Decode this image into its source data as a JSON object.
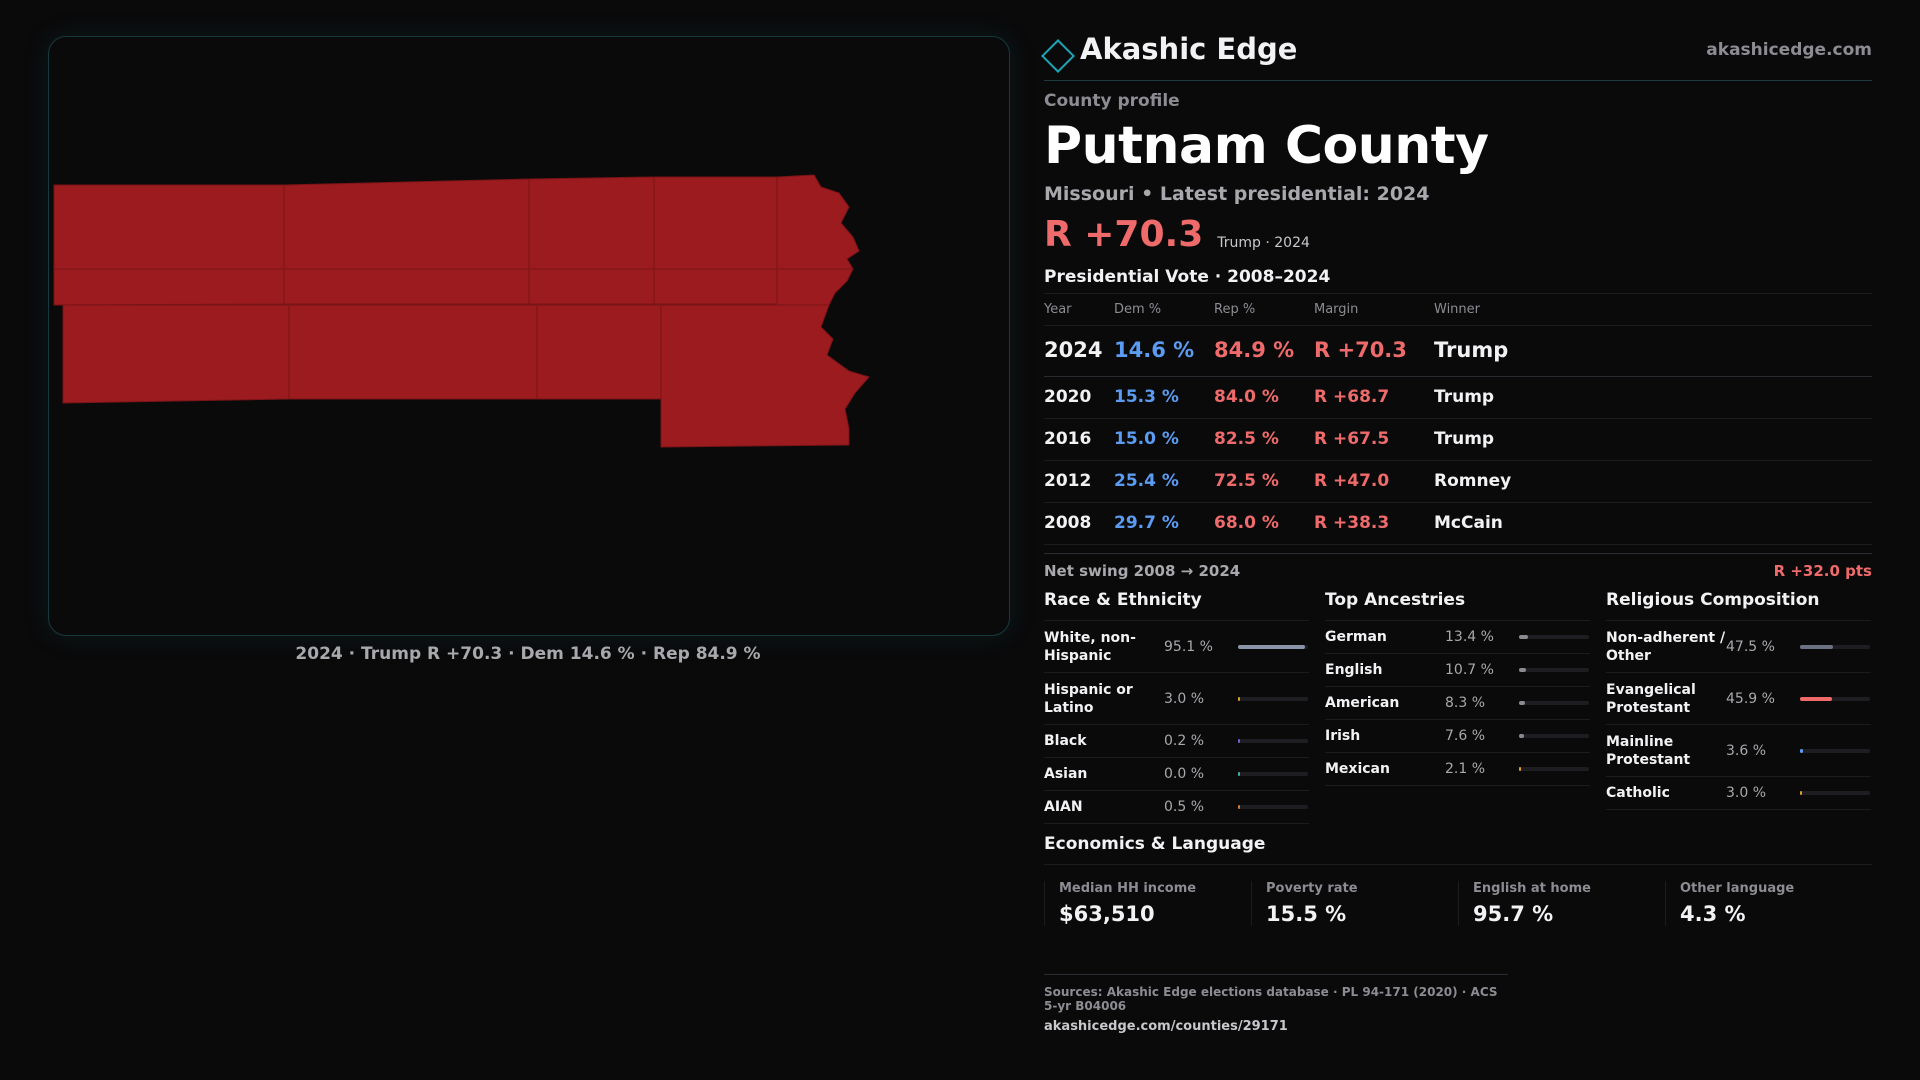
{
  "brand": {
    "name": "Akashic Edge",
    "url": "akashicedge.com",
    "logo_icon": "diamond-outline-icon",
    "accent": "#1fa4b4"
  },
  "profile": {
    "eyebrow": "County profile",
    "county": "Putnam County",
    "subline": "Missouri • Latest presidential: 2024",
    "headline_margin": "R +70.3",
    "headline_note": "Trump · 2024"
  },
  "map": {
    "caption": "2024 · Trump R +70.3 · Dem 14.6 % · Rep 84.9 %",
    "fill_color": "#9b1b1f"
  },
  "votes": {
    "title": "Presidential Vote · 2008–2024",
    "headers": {
      "year": "Year",
      "dem": "Dem %",
      "rep": "Rep %",
      "margin": "Margin",
      "winner": "Winner"
    },
    "rows": [
      {
        "year": "2024",
        "dem": "14.6 %",
        "rep": "84.9 %",
        "margin": "R +70.3",
        "winner": "Trump"
      },
      {
        "year": "2020",
        "dem": "15.3 %",
        "rep": "84.0 %",
        "margin": "R +68.7",
        "winner": "Trump"
      },
      {
        "year": "2016",
        "dem": "15.0 %",
        "rep": "82.5 %",
        "margin": "R +67.5",
        "winner": "Trump"
      },
      {
        "year": "2012",
        "dem": "25.4 %",
        "rep": "72.5 %",
        "margin": "R +47.0",
        "winner": "Romney"
      },
      {
        "year": "2008",
        "dem": "29.7 %",
        "rep": "68.0 %",
        "margin": "R +38.3",
        "winner": "McCain"
      }
    ],
    "swing_label": "Net swing 2008 → 2024",
    "swing_value": "R +32.0 pts"
  },
  "race": {
    "title": "Race & Ethnicity",
    "items": [
      {
        "label": "White, non-Hispanic",
        "pct": "95.1 %",
        "value": 95.1,
        "color": "#8a94a8"
      },
      {
        "label": "Hispanic or Latino",
        "pct": "3.0 %",
        "value": 3.0,
        "color": "#d9a320"
      },
      {
        "label": "Black",
        "pct": "0.2 %",
        "value": 0.2,
        "color": "#7a5cc8"
      },
      {
        "label": "Asian",
        "pct": "0.0 %",
        "value": 0.0,
        "color": "#3fb0a0"
      },
      {
        "label": "AIAN",
        "pct": "0.5 %",
        "value": 0.5,
        "color": "#c87a3a"
      }
    ]
  },
  "ancestry": {
    "title": "Top Ancestries",
    "items": [
      {
        "label": "German",
        "pct": "13.4 %",
        "value": 13.4,
        "color": "#8a8a90"
      },
      {
        "label": "English",
        "pct": "10.7 %",
        "value": 10.7,
        "color": "#8a8a90"
      },
      {
        "label": "American",
        "pct": "8.3 %",
        "value": 8.3,
        "color": "#8a8a90"
      },
      {
        "label": "Irish",
        "pct": "7.6 %",
        "value": 7.6,
        "color": "#8a8a90"
      },
      {
        "label": "Mexican",
        "pct": "2.1 %",
        "value": 2.1,
        "color": "#d9a320"
      }
    ]
  },
  "religion": {
    "title": "Religious Composition",
    "items": [
      {
        "label": "Non-adherent / Other",
        "pct": "47.5 %",
        "value": 47.5,
        "color": "#6a7282"
      },
      {
        "label": "Evangelical Protestant",
        "pct": "45.9 %",
        "value": 45.9,
        "color": "#ef6b6b"
      },
      {
        "label": "Mainline Protestant",
        "pct": "3.6 %",
        "value": 3.6,
        "color": "#5b9cf2"
      },
      {
        "label": "Catholic",
        "pct": "3.0 %",
        "value": 3.0,
        "color": "#d9a320"
      }
    ]
  },
  "economics": {
    "title": "Economics & Language",
    "items": [
      {
        "label": "Median HH income",
        "value": "$63,510"
      },
      {
        "label": "Poverty rate",
        "value": "15.5 %"
      },
      {
        "label": "English at home",
        "value": "95.7 %"
      },
      {
        "label": "Other language",
        "value": "4.3 %"
      }
    ]
  },
  "sources": {
    "line": "Sources: Akashic Edge elections database · PL 94-171 (2020) · ACS 5-yr B04006",
    "url": "akashicedge.com/counties/29171"
  }
}
